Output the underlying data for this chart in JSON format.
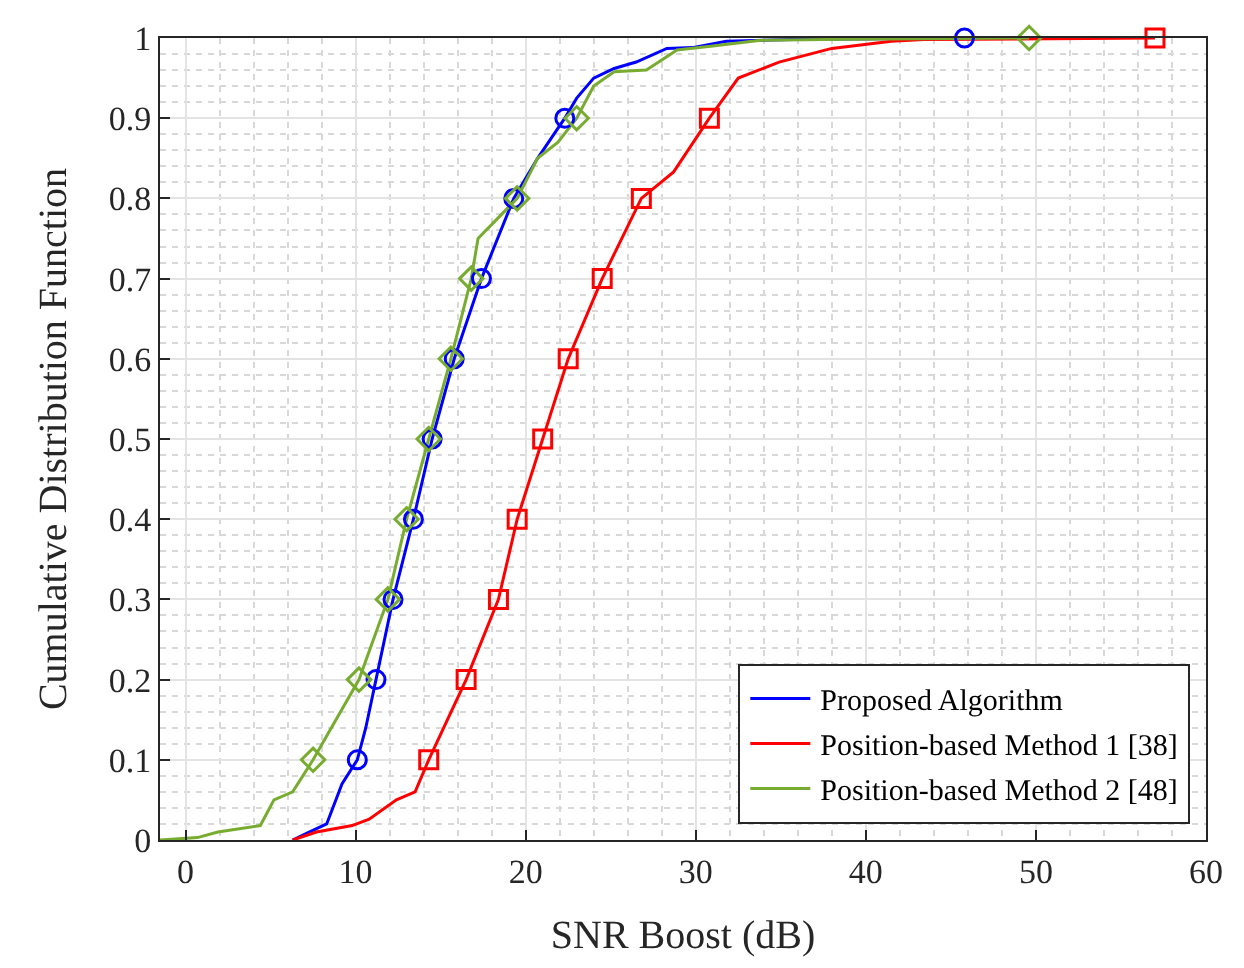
{
  "chart_data": {
    "type": "line",
    "xlabel": "SNR Boost (dB)",
    "ylabel": "Cumulative Distribution Function",
    "xlim": [
      -1.5,
      60
    ],
    "xticks": [
      0,
      10,
      20,
      30,
      40,
      50,
      60
    ],
    "ylim": [
      0,
      1
    ],
    "yticks": [
      0,
      0.1,
      0.2,
      0.3,
      0.4,
      0.5,
      0.6,
      0.7,
      0.8,
      0.9,
      1
    ],
    "grid": true,
    "legend": "bottom right",
    "series": [
      {
        "name": "Proposed Algorithm",
        "color": "#0000ff",
        "x": [
          6.3,
          7.3,
          8.3,
          9.2,
          10.1,
          10.6,
          11.2,
          12.2,
          13.4,
          14.5,
          15.8,
          17.4,
          19.3,
          20.7,
          22.3,
          23.0,
          24.0,
          25.2,
          26.5,
          28.3,
          29.8,
          31.8,
          35.7,
          45.8
        ],
        "values": [
          0,
          0.01,
          0.02,
          0.07,
          0.1,
          0.14,
          0.2,
          0.3,
          0.4,
          0.5,
          0.6,
          0.7,
          0.8,
          0.85,
          0.9,
          0.925,
          0.95,
          0.962,
          0.97,
          0.987,
          0.988,
          0.996,
          0.998,
          1
        ]
      },
      {
        "name": "Position-based Method 1 [38]",
        "color": "#ff0000",
        "x": [
          6.3,
          7.7,
          9.8,
          10.8,
          12.4,
          13.5,
          14.3,
          16.5,
          18.4,
          19.5,
          21.0,
          22.5,
          24.5,
          26.8,
          28.7,
          30.8,
          32.5,
          34.9,
          38.0,
          41.5,
          43.4,
          57.0
        ],
        "values": [
          0,
          0.01,
          0.018,
          0.026,
          0.05,
          0.06,
          0.1,
          0.2,
          0.3,
          0.4,
          0.5,
          0.6,
          0.7,
          0.8,
          0.833,
          0.9,
          0.95,
          0.97,
          0.987,
          0.996,
          0.998,
          1
        ]
      },
      {
        "name": "Position-based Method 2 [48]",
        "color": "#77ac30",
        "x": [
          -1.5,
          0.7,
          1.9,
          4.4,
          5.2,
          6.3,
          7.5,
          10.2,
          11.9,
          13.0,
          14.3,
          15.6,
          16.8,
          17.2,
          19.5,
          20.7,
          21.9,
          23.0,
          24.0,
          25.2,
          27.1,
          28.9,
          31.0,
          33.7,
          37.6,
          49.6
        ],
        "values": [
          0,
          0.003,
          0.01,
          0.018,
          0.05,
          0.06,
          0.1,
          0.2,
          0.3,
          0.4,
          0.5,
          0.6,
          0.7,
          0.75,
          0.8,
          0.85,
          0.87,
          0.9,
          0.94,
          0.958,
          0.96,
          0.985,
          0.99,
          0.997,
          0.998,
          1
        ]
      },
      {
        "type": "scatter",
        "color": "#0000ff",
        "marker": "circle",
        "x": [
          10.1,
          11.2,
          12.2,
          13.4,
          14.5,
          15.8,
          17.4,
          19.3,
          22.3,
          45.8
        ],
        "values": [
          0.1,
          0.2,
          0.3,
          0.4,
          0.5,
          0.6,
          0.7,
          0.8,
          0.9,
          1
        ]
      },
      {
        "type": "scatter",
        "color": "#ff0000",
        "marker": "square",
        "x": [
          14.3,
          16.5,
          18.4,
          19.5,
          21.0,
          22.5,
          24.5,
          26.8,
          30.8,
          57.0
        ],
        "values": [
          0.1,
          0.2,
          0.3,
          0.4,
          0.5,
          0.6,
          0.7,
          0.8,
          0.9,
          1
        ]
      },
      {
        "type": "scatter",
        "color": "#77ac30",
        "marker": "diamond",
        "x": [
          7.5,
          10.2,
          11.9,
          13.0,
          14.3,
          15.6,
          16.8,
          19.5,
          23.0,
          49.6
        ],
        "values": [
          0.1,
          0.2,
          0.3,
          0.4,
          0.5,
          0.6,
          0.7,
          0.8,
          0.9,
          1
        ]
      }
    ]
  }
}
